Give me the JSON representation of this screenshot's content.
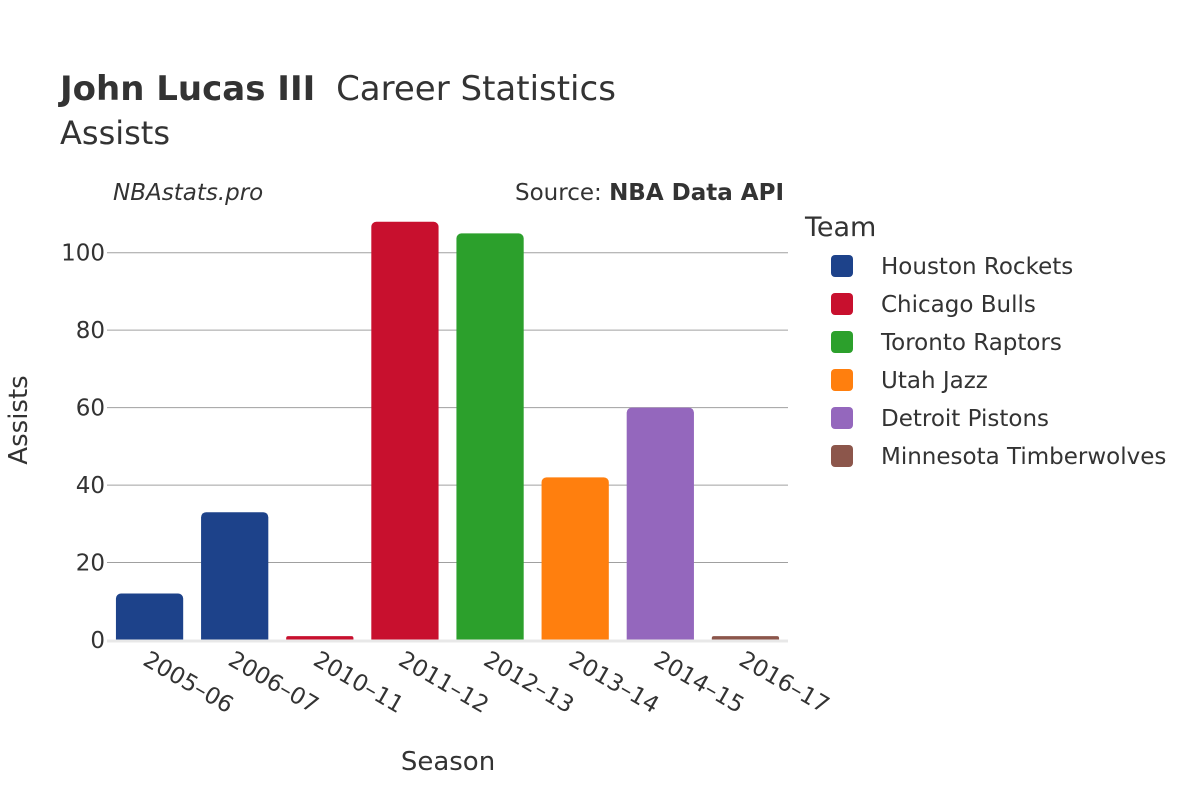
{
  "title": {
    "player": "John Lucas III",
    "rest": "Career Statistics",
    "subtitle": "Assists"
  },
  "watermark": "NBAstats.pro",
  "source": {
    "label": "Source:",
    "name": "NBA Data API"
  },
  "legend_title": "Team",
  "chart_data": {
    "type": "bar",
    "xlabel": "Season",
    "ylabel": "Assists",
    "ylim": [
      0,
      110
    ],
    "yticks": [
      0,
      20,
      40,
      60,
      80,
      100
    ],
    "grid": true,
    "legend_position": "right",
    "categories": [
      "2005–06",
      "2006–07",
      "2010–11",
      "2011–12",
      "2012–13",
      "2013–14",
      "2014–15",
      "2016–17"
    ],
    "values": [
      12,
      33,
      1,
      108,
      105,
      42,
      60,
      1
    ],
    "bar_teams": [
      "Houston Rockets",
      "Houston Rockets",
      "Chicago Bulls",
      "Chicago Bulls",
      "Toronto Raptors",
      "Utah Jazz",
      "Detroit Pistons",
      "Minnesota Timberwolves"
    ],
    "series": [
      {
        "name": "Houston Rockets",
        "color": "#1d428a"
      },
      {
        "name": "Chicago Bulls",
        "color": "#c8102e"
      },
      {
        "name": "Toronto Raptors",
        "color": "#2ca02c"
      },
      {
        "name": "Utah Jazz",
        "color": "#ff7f0e"
      },
      {
        "name": "Detroit Pistons",
        "color": "#9467bd"
      },
      {
        "name": "Minnesota Timberwolves",
        "color": "#8c564b"
      }
    ]
  }
}
